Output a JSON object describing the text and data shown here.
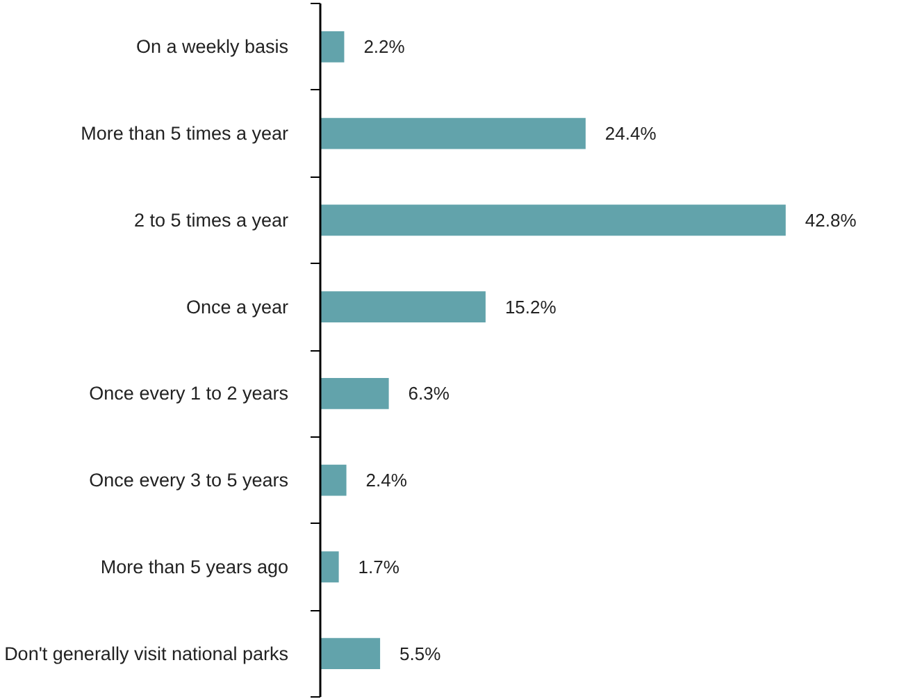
{
  "chart_data": {
    "type": "bar",
    "orientation": "horizontal",
    "categories": [
      "On a weekly basis",
      "More than 5 times a year",
      "2 to 5 times a year",
      "Once a year",
      "Once every 1 to 2 years",
      "Once every 3 to 5 years",
      "More than 5 years ago",
      "Don't generally visit national parks"
    ],
    "values": [
      2.2,
      24.4,
      42.8,
      15.2,
      6.3,
      2.4,
      1.7,
      5.5
    ],
    "value_labels": [
      "2.2%",
      "24.4%",
      "42.8%",
      "15.2%",
      "6.3%",
      "2.4%",
      "1.7%",
      "5.5%"
    ],
    "color": "#62a3ab",
    "grid": false,
    "tick_labels": "y"
  }
}
